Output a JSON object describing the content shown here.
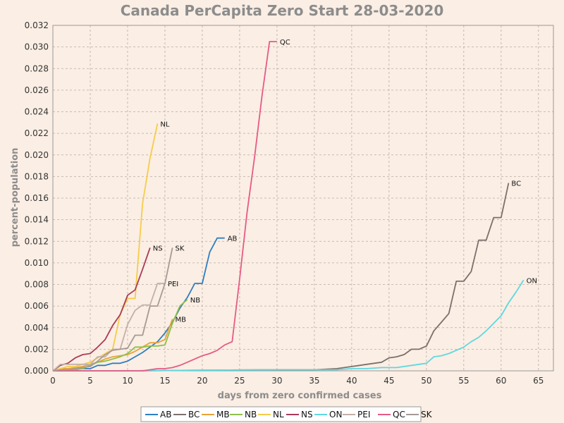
{
  "chart_data": {
    "type": "line",
    "title": "Canada PerCapita Zero Start 28-03-2020",
    "xlabel": "days from zero confirmed cases",
    "ylabel": "percent-population",
    "xlim": [
      0,
      67
    ],
    "ylim": [
      0,
      0.032
    ],
    "xticks": [
      "0",
      "5",
      "10",
      "15",
      "20",
      "25",
      "30",
      "35",
      "40",
      "45",
      "50",
      "55",
      "60",
      "65"
    ],
    "yticks": [
      "0.000",
      "0.002",
      "0.004",
      "0.006",
      "0.008",
      "0.010",
      "0.012",
      "0.014",
      "0.016",
      "0.018",
      "0.020",
      "0.022",
      "0.024",
      "0.026",
      "0.028",
      "0.030",
      "0.032"
    ],
    "grid": true,
    "legend_position": "bottom",
    "series": [
      {
        "name": "AB",
        "color": "#2f7ec2",
        "x": [
          0,
          1,
          2,
          3,
          4,
          5,
          6,
          7,
          8,
          9,
          10,
          11,
          12,
          13,
          14,
          15,
          16,
          17,
          18,
          19,
          20,
          21,
          22,
          23
        ],
        "y": [
          0,
          0.0001,
          0.0001,
          0.0002,
          0.0002,
          0.0002,
          0.0005,
          0.0005,
          0.0007,
          0.0007,
          0.0009,
          0.0013,
          0.0017,
          0.0022,
          0.0027,
          0.0035,
          0.0045,
          0.0058,
          0.0068,
          0.0081,
          0.0081,
          0.011,
          0.0123,
          0.0123
        ]
      },
      {
        "name": "BC",
        "color": "#7c706c",
        "x": [
          0,
          10,
          20,
          30,
          35,
          38,
          40,
          42,
          44,
          45,
          46,
          47,
          48,
          49,
          50,
          51,
          52,
          53,
          54,
          55,
          56,
          57,
          58,
          59,
          60,
          61
        ],
        "y": [
          0,
          0,
          5e-05,
          0.0001,
          0.0001,
          0.0002,
          0.0004,
          0.0006,
          0.0008,
          0.0012,
          0.0013,
          0.0015,
          0.002,
          0.002,
          0.0023,
          0.0037,
          0.0045,
          0.0053,
          0.0083,
          0.0083,
          0.0092,
          0.0121,
          0.0121,
          0.0142,
          0.0142,
          0.0174
        ]
      },
      {
        "name": "MB",
        "color": "#e8a33b",
        "x": [
          0,
          1,
          2,
          3,
          4,
          5,
          6,
          7,
          8,
          9,
          10,
          11,
          12,
          13,
          14,
          15,
          16
        ],
        "y": [
          0,
          0.0002,
          0.0002,
          0.0003,
          0.0004,
          0.0006,
          0.0008,
          0.0011,
          0.0013,
          0.0014,
          0.0015,
          0.0018,
          0.0022,
          0.0026,
          0.0026,
          0.0029,
          0.0048
        ]
      },
      {
        "name": "NB",
        "color": "#8ec04a",
        "x": [
          0,
          1,
          2,
          3,
          4,
          5,
          6,
          7,
          8,
          9,
          10,
          11,
          12,
          13,
          14,
          15,
          16,
          17,
          18
        ],
        "y": [
          0,
          0.0001,
          0.0001,
          0.0001,
          0.0002,
          0.0005,
          0.0008,
          0.0009,
          0.0011,
          0.0013,
          0.0016,
          0.0022,
          0.0022,
          0.0023,
          0.0023,
          0.0024,
          0.0044,
          0.006,
          0.0066
        ]
      },
      {
        "name": "NL",
        "color": "#f6cc4a",
        "x": [
          0,
          1,
          2,
          3,
          4,
          5,
          6,
          7,
          8,
          9,
          10,
          11,
          12,
          13,
          14
        ],
        "y": [
          0,
          0.0002,
          0.0004,
          0.0004,
          0.0006,
          0.0008,
          0.0012,
          0.0016,
          0.002,
          0.0052,
          0.0067,
          0.0067,
          0.0155,
          0.0197,
          0.0229
        ]
      },
      {
        "name": "NS",
        "color": "#a83c58",
        "x": [
          0,
          1,
          2,
          3,
          4,
          5,
          6,
          7,
          8,
          9,
          10,
          11,
          12,
          13
        ],
        "y": [
          0,
          0.0005,
          0.0007,
          0.0012,
          0.0015,
          0.0016,
          0.0022,
          0.0029,
          0.0042,
          0.0052,
          0.007,
          0.0075,
          0.0094,
          0.0114
        ]
      },
      {
        "name": "ON",
        "color": "#5fd8e0",
        "x": [
          0,
          10,
          20,
          30,
          35,
          38,
          40,
          42,
          44,
          46,
          48,
          49,
          50,
          51,
          52,
          53,
          54,
          55,
          56,
          57,
          58,
          59,
          60,
          61,
          62,
          63
        ],
        "y": [
          0,
          0,
          5e-05,
          0.0001,
          0.0001,
          0.0001,
          0.0002,
          0.0002,
          0.0003,
          0.0003,
          0.0005,
          0.0006,
          0.0007,
          0.0013,
          0.0014,
          0.0016,
          0.0019,
          0.0022,
          0.0027,
          0.0031,
          0.0037,
          0.0044,
          0.0051,
          0.0063,
          0.0073,
          0.0084
        ]
      },
      {
        "name": "PEI",
        "color": "#c3b0a6",
        "x": [
          0,
          1,
          2,
          3,
          4,
          5,
          6,
          7,
          8,
          9,
          10,
          11,
          12,
          13,
          14,
          15
        ],
        "y": [
          0,
          0.0006,
          0.0006,
          0.0006,
          0.0006,
          0.0006,
          0.0013,
          0.0013,
          0.002,
          0.002,
          0.0043,
          0.0056,
          0.0061,
          0.0061,
          0.0081,
          0.0081
        ]
      },
      {
        "name": "QC",
        "color": "#e65a86",
        "x": [
          0,
          5,
          10,
          12,
          13,
          14,
          15,
          16,
          17,
          18,
          19,
          20,
          21,
          22,
          23,
          24,
          25,
          26,
          27,
          28,
          29,
          30
        ],
        "y": [
          0,
          0,
          0,
          0,
          0.0001,
          0.0002,
          0.0002,
          0.0003,
          0.0005,
          0.0008,
          0.0011,
          0.0014,
          0.0016,
          0.0019,
          0.0024,
          0.0027,
          0.0085,
          0.0147,
          0.0198,
          0.0255,
          0.0305,
          0.0305
        ]
      },
      {
        "name": "SK",
        "color": "#a69a94",
        "x": [
          0,
          1,
          2,
          3,
          4,
          5,
          6,
          7,
          8,
          9,
          10,
          11,
          12,
          13,
          14,
          15,
          16
        ],
        "y": [
          0,
          0.0001,
          0.0001,
          0.0002,
          0.0003,
          0.0004,
          0.0009,
          0.0015,
          0.0019,
          0.002,
          0.0021,
          0.0033,
          0.0033,
          0.006,
          0.006,
          0.0081,
          0.0114
        ]
      }
    ],
    "end_labels": [
      {
        "series": "QC",
        "text": "QC"
      },
      {
        "series": "NL",
        "text": "NL"
      },
      {
        "series": "BC",
        "text": "BC"
      },
      {
        "series": "AB",
        "text": "AB"
      },
      {
        "series": "NS",
        "text": "NS"
      },
      {
        "series": "SK",
        "text": "SK"
      },
      {
        "series": "ON",
        "text": "ON"
      },
      {
        "series": "PEI",
        "text": "PEI"
      },
      {
        "series": "NB",
        "text": "NB"
      },
      {
        "series": "MB",
        "text": "MB"
      }
    ]
  }
}
